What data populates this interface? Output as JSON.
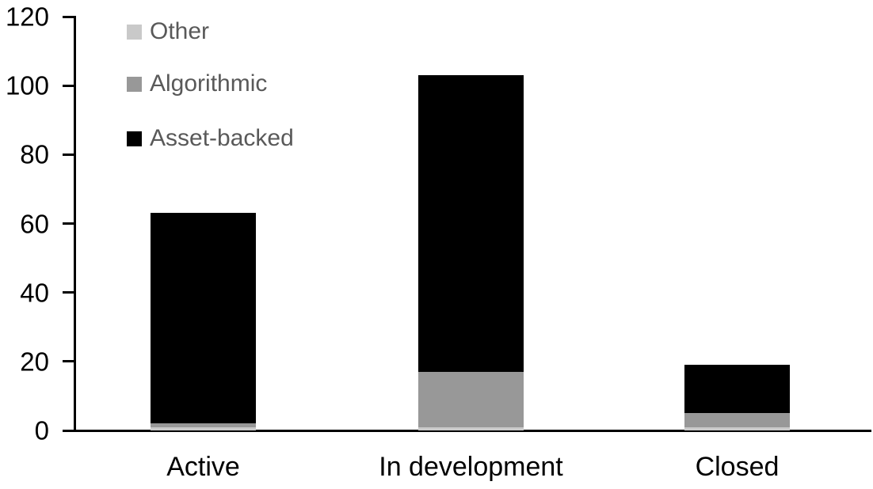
{
  "chart_data": {
    "type": "bar",
    "stacked": true,
    "title": "",
    "xlabel": "",
    "ylabel": "",
    "categories": [
      "Active",
      "In development",
      "Closed"
    ],
    "series": [
      {
        "name": "Asset-backed",
        "color": "#000000",
        "values": [
          63,
          103,
          19
        ]
      },
      {
        "name": "Algorithmic",
        "color": "#989898",
        "values": [
          2,
          17,
          5
        ]
      },
      {
        "name": "Other",
        "color": "#c9c9c9",
        "values": [
          1,
          1,
          1
        ]
      }
    ],
    "ylim": [
      0,
      120
    ],
    "yticks": [
      0,
      20,
      40,
      60,
      80,
      100,
      120
    ],
    "grid": false,
    "legend_position": "top-left",
    "legend_order_top_to_bottom": [
      "Other",
      "Algorithmic",
      "Asset-backed"
    ],
    "legend_text_color": "#595959",
    "axis_color": "#000000",
    "background_color": "#ffffff"
  }
}
